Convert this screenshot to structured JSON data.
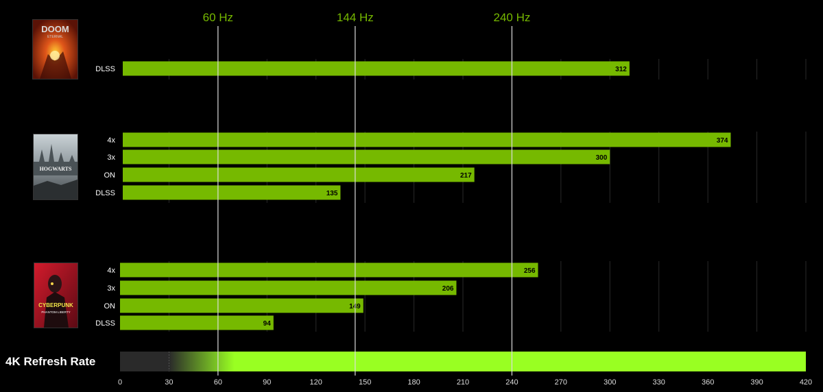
{
  "colors": {
    "bar": "#76b900",
    "refresh_bar": "#99ff22",
    "refresh_line": "#dddddd",
    "refresh_label": "#76b900",
    "grid": "#2a2a2a",
    "background": "#000000"
  },
  "chart_data": {
    "type": "bar",
    "orientation": "horizontal",
    "xlim": [
      0,
      420
    ],
    "x_ticks": [
      "0",
      "30",
      "60",
      "90",
      "120",
      "150",
      "180",
      "210",
      "240",
      "270",
      "300",
      "330",
      "360",
      "390",
      "420"
    ],
    "refresh_lines": [
      {
        "label": "60 Hz",
        "value": 60
      },
      {
        "label": "144 Hz",
        "value": 144
      },
      {
        "label": "240 Hz",
        "value": 240
      }
    ],
    "groups": [
      {
        "art": "doom-eternal-cover",
        "bars": [
          {
            "label": "DLSS",
            "value": 312
          }
        ]
      },
      {
        "art": "hogwarts-legacy-cover",
        "bars": [
          {
            "label": "4x",
            "value": 374
          },
          {
            "label": "3x",
            "value": 300
          },
          {
            "label": "ON",
            "value": 217
          },
          {
            "label": "DLSS",
            "value": 135
          }
        ]
      },
      {
        "art": "cyberpunk-phantom-liberty-cover",
        "bars": [
          {
            "label": "4x",
            "value": 256
          },
          {
            "label": "3x",
            "value": 206
          },
          {
            "label": "ON",
            "value": 149
          },
          {
            "label": "DLSS",
            "value": 94
          }
        ]
      }
    ],
    "refresh_bar": {
      "label": "4K Refresh Rate",
      "value": 420,
      "fade_start": 30,
      "fade_end": 70
    },
    "grid": true
  },
  "art_text": {
    "doom_logo": "DOOM",
    "doom_sub": "ETERNAL",
    "hogwarts_logo": "HOGWARTS",
    "cyberpunk_logo": "CYBERPUNK",
    "cyberpunk_sub": "PHANTOM LIBERTY"
  }
}
